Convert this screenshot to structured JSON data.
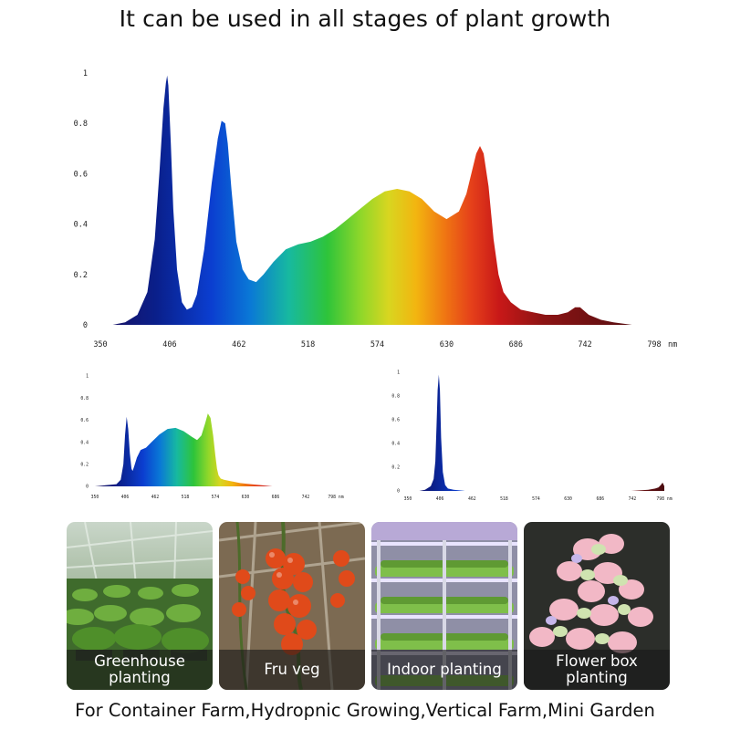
{
  "headline": "It can be used in all stages of plant growth",
  "colors": {
    "background": "#ffffff",
    "text": "#111111",
    "caption_bg": "rgba(25,25,25,0.62)"
  },
  "chart_data": [
    {
      "type": "area",
      "title": "",
      "xlabel": "",
      "ylabel": "",
      "x_unit": "nm",
      "xlim": [
        350,
        798
      ],
      "ylim": [
        0,
        1
      ],
      "x_ticks": [
        350,
        406,
        462,
        518,
        574,
        630,
        686,
        742,
        798
      ],
      "x_tick_labels": [
        "350",
        "406",
        "462",
        "518",
        "574",
        "630",
        "686",
        "742",
        "798"
      ],
      "y_ticks": [
        0,
        0.2,
        0.4,
        0.6,
        0.8,
        1
      ],
      "y_tick_labels": [
        "0",
        "0.2",
        "0.4",
        "0.6",
        "0.8",
        "1"
      ],
      "fill": "wavelength color gradient",
      "grid": false,
      "series": [
        {
          "x": [
            350,
            360,
            370,
            380,
            388,
            394,
            398,
            401,
            403,
            404,
            405,
            407,
            409,
            412,
            416,
            420,
            424,
            428,
            434,
            440,
            445,
            448,
            451,
            453,
            456,
            460,
            465,
            470,
            476,
            482,
            490,
            500,
            510,
            520,
            530,
            540,
            550,
            560,
            570,
            580,
            590,
            600,
            610,
            620,
            630,
            640,
            646,
            650,
            654,
            657,
            660,
            664,
            668,
            672,
            676,
            682,
            690,
            700,
            710,
            720,
            728,
            734,
            738,
            745,
            755,
            765,
            780,
            798
          ],
          "y": [
            0.0,
            0.0,
            0.01,
            0.04,
            0.13,
            0.34,
            0.62,
            0.86,
            0.96,
            0.99,
            0.95,
            0.72,
            0.46,
            0.22,
            0.09,
            0.06,
            0.07,
            0.12,
            0.3,
            0.56,
            0.74,
            0.81,
            0.8,
            0.72,
            0.54,
            0.33,
            0.22,
            0.18,
            0.17,
            0.2,
            0.25,
            0.3,
            0.32,
            0.33,
            0.35,
            0.38,
            0.42,
            0.46,
            0.5,
            0.53,
            0.54,
            0.53,
            0.5,
            0.45,
            0.42,
            0.45,
            0.52,
            0.6,
            0.68,
            0.71,
            0.68,
            0.55,
            0.34,
            0.2,
            0.13,
            0.09,
            0.06,
            0.05,
            0.04,
            0.04,
            0.05,
            0.07,
            0.07,
            0.04,
            0.02,
            0.01,
            0.0,
            0.0
          ]
        }
      ]
    },
    {
      "type": "area",
      "title": "",
      "xlim": [
        350,
        798
      ],
      "ylim": [
        0,
        1
      ],
      "x_ticks": [
        350,
        406,
        462,
        518,
        574,
        630,
        686,
        742,
        798
      ],
      "x_tick_labels": [
        "350",
        "406",
        "462",
        "518",
        "574",
        "630",
        "686",
        "742",
        "798 nm"
      ],
      "y_ticks": [
        0,
        0.2,
        0.4,
        0.6,
        0.8,
        1
      ],
      "y_tick_labels": [
        "0",
        "0.2",
        "0.4",
        "0.6",
        "0.8",
        "1"
      ],
      "fill": "wavelength color gradient",
      "grid": false,
      "series": [
        {
          "x": [
            350,
            370,
            390,
            398,
            403,
            406,
            409,
            412,
            415,
            418,
            420,
            423,
            428,
            435,
            445,
            455,
            470,
            485,
            500,
            515,
            530,
            540,
            548,
            555,
            560,
            565,
            570,
            574,
            577,
            580,
            584,
            590,
            600,
            620,
            640,
            660,
            680,
            700,
            720,
            740,
            760,
            780,
            798
          ],
          "y": [
            0.0,
            0.01,
            0.02,
            0.06,
            0.2,
            0.46,
            0.63,
            0.52,
            0.3,
            0.16,
            0.14,
            0.18,
            0.26,
            0.33,
            0.35,
            0.4,
            0.47,
            0.52,
            0.53,
            0.5,
            0.45,
            0.42,
            0.46,
            0.57,
            0.66,
            0.62,
            0.46,
            0.28,
            0.16,
            0.1,
            0.07,
            0.06,
            0.05,
            0.03,
            0.02,
            0.01,
            0.0,
            0.0,
            0.0,
            0.0,
            0.0,
            0.0,
            0.0
          ]
        }
      ]
    },
    {
      "type": "area",
      "title": "",
      "xlim": [
        350,
        798
      ],
      "ylim": [
        0,
        1
      ],
      "x_ticks": [
        350,
        406,
        462,
        518,
        574,
        630,
        686,
        742,
        798
      ],
      "x_tick_labels": [
        "350",
        "406",
        "462",
        "518",
        "574",
        "630",
        "686",
        "742",
        "798 nm"
      ],
      "y_ticks": [
        0,
        0.2,
        0.4,
        0.6,
        0.8,
        1
      ],
      "y_tick_labels": [
        "0",
        "0.2",
        "0.4",
        "0.6",
        "0.8",
        "1"
      ],
      "fill": "wavelength color gradient",
      "grid": false,
      "series": [
        {
          "x": [
            350,
            370,
            380,
            390,
            395,
            398,
            400,
            402,
            404,
            406,
            408,
            411,
            415,
            420,
            430,
            450,
            500,
            550,
            600,
            650,
            700,
            740,
            770,
            782,
            788,
            792,
            795,
            798
          ],
          "y": [
            0.0,
            0.0,
            0.01,
            0.04,
            0.1,
            0.25,
            0.55,
            0.85,
            0.98,
            0.85,
            0.45,
            0.16,
            0.05,
            0.02,
            0.01,
            0.0,
            0.0,
            0.0,
            0.0,
            0.0,
            0.0,
            0.0,
            0.01,
            0.02,
            0.03,
            0.05,
            0.07,
            0.04
          ]
        }
      ]
    }
  ],
  "tiles": [
    {
      "caption": "Greenhouse\nplanting",
      "scene": "greenhouse-seedlings"
    },
    {
      "caption": "Fru veg",
      "scene": "tomato-vine"
    },
    {
      "caption": "Indoor planting",
      "scene": "vertical-rack"
    },
    {
      "caption": "Flower box\nplanting",
      "scene": "succulents"
    }
  ],
  "footer": "For Container Farm,Hydropnic Growing,Vertical Farm,Mini Garden"
}
